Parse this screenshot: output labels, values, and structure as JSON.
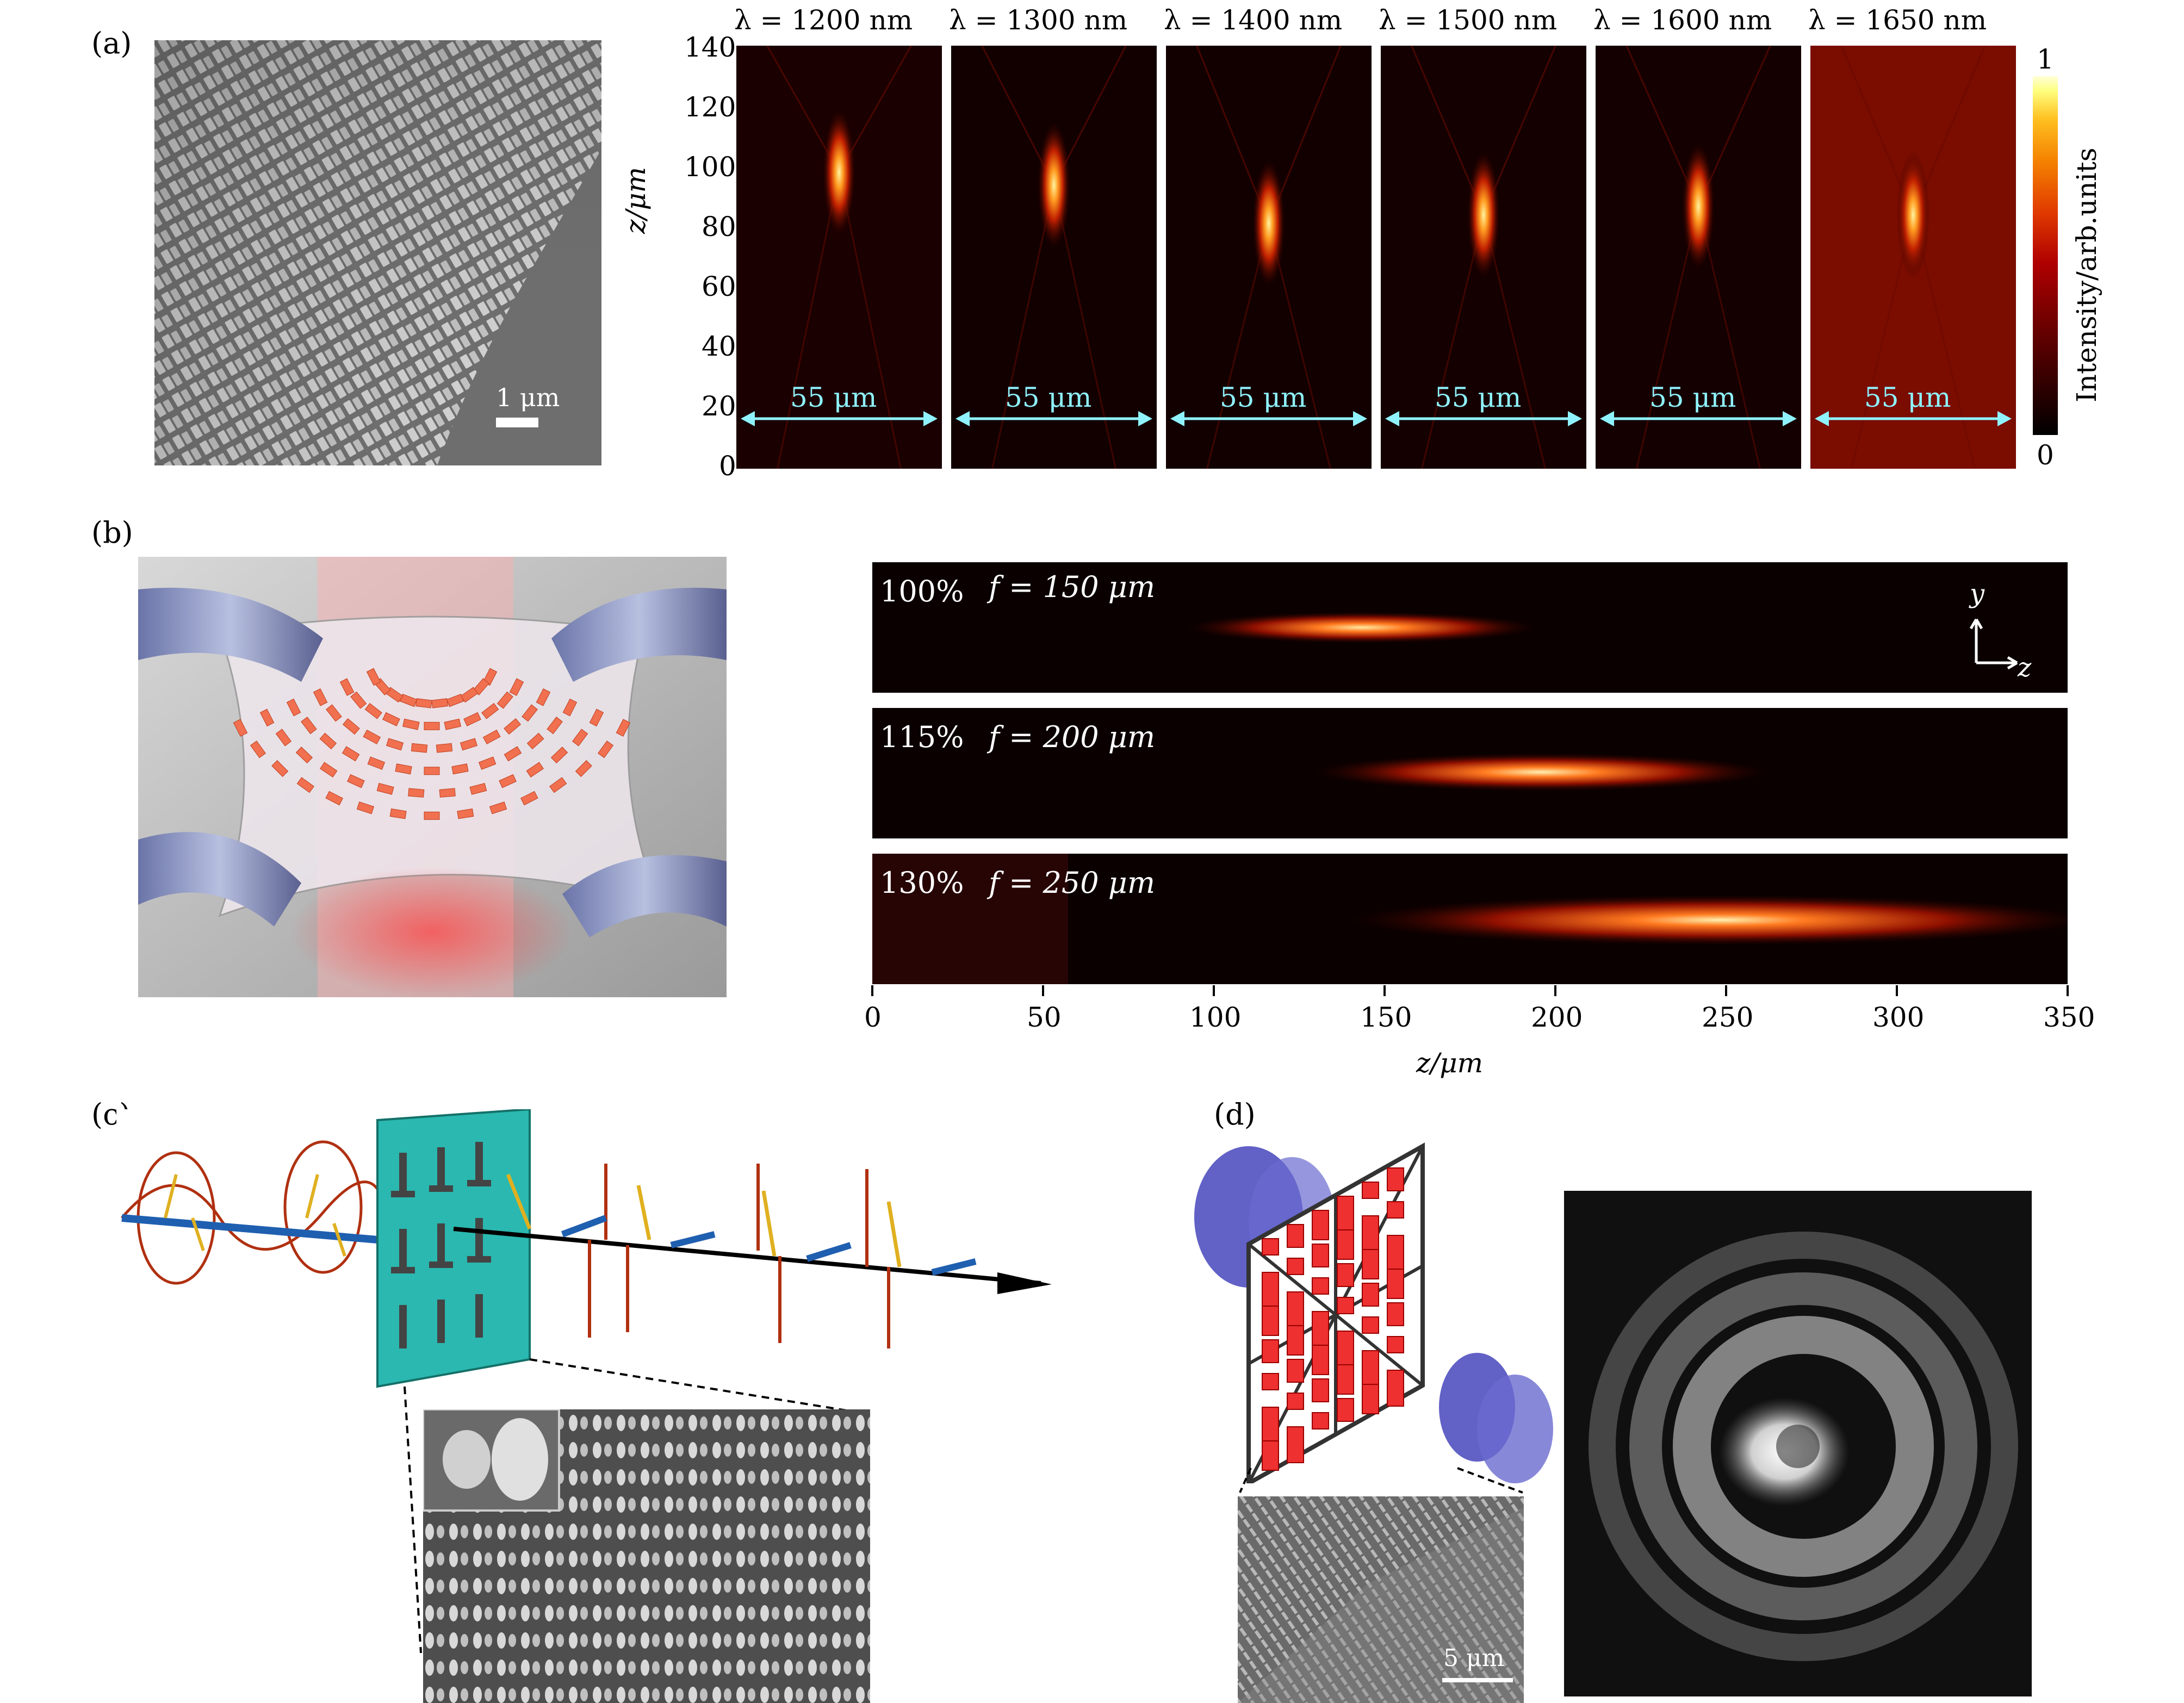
{
  "panel_labels": [
    "(a)",
    "(b)",
    "(c)",
    "(d)"
  ],
  "panel_a": {
    "scale_bar": "1 μm",
    "wavelengths": [
      "λ = 1200 nm",
      "λ = 1300 nm",
      "λ = 1400 nm",
      "λ = 1500 nm",
      "λ = 1600 nm",
      "λ = 1650 nm"
    ],
    "width_label": "55 μm",
    "yaxis_label": "z/μm",
    "yticks": [
      "140",
      "120",
      "100",
      "80",
      "60",
      "40",
      "20",
      "0"
    ],
    "colorbar_label": "Intensity/arb.units",
    "colorbar_max": "1",
    "colorbar_min": "0"
  },
  "panel_b": {
    "rows": [
      {
        "strain": "100%",
        "focal": "f = 150 μm"
      },
      {
        "strain": "115%",
        "focal": "f = 200 μm"
      },
      {
        "strain": "130%",
        "focal": "f = 250 μm"
      }
    ],
    "axis_y": "y",
    "axis_z": "z",
    "xticks": [
      "0",
      "50",
      "100",
      "150",
      "200",
      "250",
      "300",
      "350"
    ],
    "xlabel": "z/μm"
  },
  "panel_d": {
    "scale_bar": "5 μm"
  },
  "colors": {
    "heat_dark": "#1a0000",
    "heat_hot": "#ffdf60",
    "cyan_arrow": "#8ff3ff",
    "metal_red": "#ee3030",
    "lobe_blue": "#5050c0"
  }
}
